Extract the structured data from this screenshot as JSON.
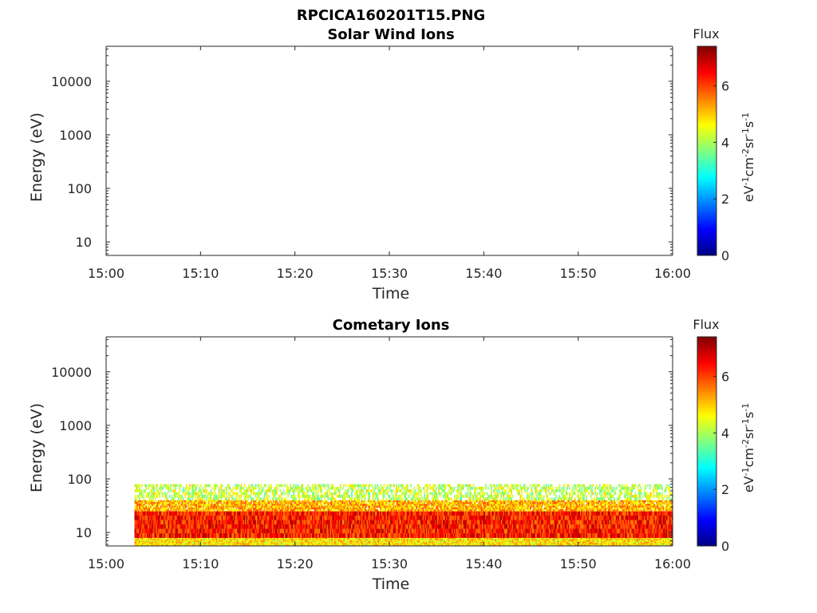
{
  "figure": {
    "title_line1": "RPCICA160201T15.PNG"
  },
  "chart_data": [
    {
      "type": "heatmap",
      "title": "Solar Wind Ions",
      "xlabel": "Time",
      "ylabel": "Energy (eV)",
      "x_range": [
        "15:00",
        "16:00"
      ],
      "x_ticks": [
        "15:00",
        "15:10",
        "15:20",
        "15:30",
        "15:40",
        "15:50",
        "16:00"
      ],
      "y_scale": "log",
      "y_range": [
        5.6,
        45000
      ],
      "y_ticks": [
        10,
        100,
        1000,
        10000
      ],
      "y_tick_labels": [
        "10",
        "100",
        "1000",
        "10000"
      ],
      "colorbar": {
        "title": "Flux",
        "units": [
          "eV",
          "-1",
          "cm",
          "-2",
          "sr",
          "-1",
          "s",
          "-1"
        ],
        "range": [
          0,
          7.4
        ],
        "ticks": [
          "0",
          "2",
          "4",
          "6"
        ],
        "colormap": "jet"
      },
      "data_present": false
    },
    {
      "type": "heatmap",
      "title": "Cometary Ions",
      "xlabel": "Time",
      "ylabel": "Energy (eV)",
      "x_range": [
        "15:00",
        "16:00"
      ],
      "x_ticks": [
        "15:00",
        "15:10",
        "15:20",
        "15:30",
        "15:40",
        "15:50",
        "16:00"
      ],
      "y_scale": "log",
      "y_range": [
        5.6,
        45000
      ],
      "y_ticks": [
        10,
        100,
        1000,
        10000
      ],
      "y_tick_labels": [
        "10",
        "100",
        "1000",
        "10000"
      ],
      "colorbar": {
        "title": "Flux",
        "units": [
          "eV",
          "-1",
          "cm",
          "-2",
          "sr",
          "-1",
          "s",
          "-1"
        ],
        "range": [
          0,
          7.4
        ],
        "ticks": [
          "0",
          "2",
          "4",
          "6"
        ],
        "colormap": "jet"
      },
      "data_present": true,
      "data_time_range": [
        "15:03",
        "16:00"
      ],
      "energy_bands": [
        {
          "energy_range_eV": [
            5.6,
            8
          ],
          "flux": 4.8
        },
        {
          "energy_range_eV": [
            8,
            25
          ],
          "flux": 6.3
        },
        {
          "energy_range_eV": [
            25,
            40
          ],
          "flux": 5.2
        },
        {
          "energy_range_eV": [
            40,
            80
          ],
          "flux": 4.2
        }
      ]
    }
  ]
}
